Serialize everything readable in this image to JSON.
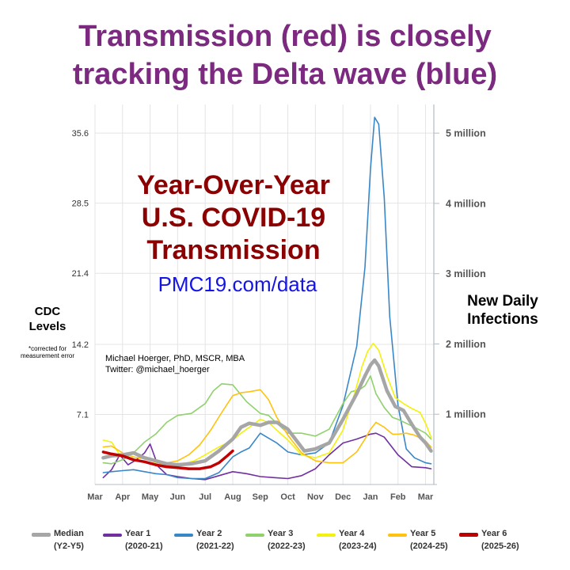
{
  "headline": {
    "line1": "Transmission (red) is closely",
    "line2": "tracking the Delta wave (blue)"
  },
  "inset": {
    "title_line1": "Year-Over-Year",
    "title_line2": "U.S. COVID-19",
    "title_line3": "Transmission",
    "url": "PMC19.com/data"
  },
  "credit": {
    "line1": "Michael Hoerger, PhD, MSCR, MBA",
    "line2": "Twitter: @michael_hoerger"
  },
  "axis_labels": {
    "left_line1": "CDC",
    "left_line2": "Levels",
    "left_note": "*corrected for measurement error",
    "right_line1": "New Daily",
    "right_line2": "Infections"
  },
  "chart_data": {
    "type": "line",
    "x_tick_labels": [
      "Mar",
      "Apr",
      "May",
      "Jun",
      "Jul",
      "Aug",
      "Sep",
      "Oct",
      "Nov",
      "Dec",
      "Jan",
      "Feb",
      "Mar"
    ],
    "x_range": [
      0,
      12.3
    ],
    "y_left_ticks": [
      7.1,
      14.2,
      21.4,
      28.5,
      35.6
    ],
    "y_left_tick_labels": [
      "7.1",
      "14.2",
      "21.4",
      "28.5",
      "35.6"
    ],
    "y_left_range": [
      0,
      38.5
    ],
    "y_right_ticks": [
      1,
      2,
      3,
      4,
      5
    ],
    "y_right_tick_labels": [
      "1 million",
      "2 million",
      "3 million",
      "4 million",
      "5 million"
    ],
    "ylabel_left": "CDC Levels",
    "ylabel_right": "New Daily Infections",
    "series": [
      {
        "name": "Year 1",
        "period": "(2020-21)",
        "color": "#7030a0",
        "width": 1.6,
        "x": [
          0.3,
          0.6,
          0.9,
          1.2,
          1.5,
          1.8,
          2.0,
          2.3,
          2.6,
          3.0,
          3.5,
          4.0,
          4.5,
          5.0,
          5.5,
          6.0,
          6.5,
          7.0,
          7.5,
          8.0,
          8.5,
          9.0,
          9.5,
          10.0,
          10.2,
          10.5,
          11.0,
          11.5,
          12.0,
          12.2
        ],
        "y": [
          0.7,
          1.5,
          3.0,
          2.0,
          2.5,
          3.2,
          4.1,
          1.8,
          1.0,
          0.8,
          0.6,
          0.5,
          0.9,
          1.3,
          1.1,
          0.8,
          0.7,
          0.6,
          0.9,
          1.6,
          3.0,
          4.2,
          4.6,
          5.1,
          5.2,
          4.8,
          3.0,
          1.8,
          1.7,
          1.6
        ]
      },
      {
        "name": "Year 2",
        "period": "(2021-22)",
        "color": "#3a87c8",
        "width": 1.6,
        "x": [
          0.3,
          0.6,
          1.0,
          1.4,
          1.8,
          2.2,
          2.6,
          3.0,
          3.5,
          4.0,
          4.5,
          5.0,
          5.3,
          5.6,
          6.0,
          6.3,
          6.6,
          7.0,
          7.5,
          8.0,
          8.5,
          9.0,
          9.5,
          9.8,
          10.0,
          10.15,
          10.3,
          10.5,
          10.7,
          11.0,
          11.3,
          11.6,
          12.0,
          12.2
        ],
        "y": [
          1.2,
          1.3,
          1.4,
          1.5,
          1.3,
          1.1,
          1.0,
          0.7,
          0.6,
          0.6,
          1.2,
          2.8,
          3.3,
          3.7,
          5.2,
          4.7,
          4.2,
          3.3,
          3.0,
          3.2,
          4.2,
          8.0,
          14.0,
          22.0,
          32.0,
          37.2,
          36.5,
          29.0,
          17.0,
          8.0,
          3.6,
          2.7,
          2.2,
          2.1
        ]
      },
      {
        "name": "Year 3",
        "period": "(2022-23)",
        "color": "#8fd16c",
        "width": 1.6,
        "x": [
          0.3,
          0.6,
          1.0,
          1.4,
          1.8,
          2.2,
          2.6,
          3.0,
          3.5,
          4.0,
          4.3,
          4.6,
          5.0,
          5.5,
          6.0,
          6.3,
          6.6,
          7.0,
          7.5,
          8.0,
          8.5,
          9.0,
          9.3,
          9.6,
          9.8,
          10.0,
          10.2,
          10.5,
          10.8,
          11.0,
          11.3,
          11.6,
          12.0,
          12.2
        ],
        "y": [
          2.2,
          2.1,
          2.5,
          3.2,
          4.3,
          5.1,
          6.3,
          7.0,
          7.2,
          8.2,
          9.5,
          10.2,
          10.1,
          8.4,
          7.2,
          7.0,
          6.2,
          5.2,
          5.2,
          4.9,
          5.6,
          8.2,
          9.4,
          9.6,
          10.0,
          11.0,
          9.2,
          7.8,
          6.8,
          6.6,
          6.2,
          5.8,
          5.2,
          4.6
        ]
      },
      {
        "name": "Year 4",
        "period": "(2023-24)",
        "color": "#f2f20e",
        "width": 1.6,
        "x": [
          0.3,
          0.6,
          0.9,
          1.2,
          1.6,
          2.0,
          2.4,
          2.8,
          3.2,
          3.6,
          4.0,
          4.5,
          5.0,
          5.3,
          5.6,
          6.0,
          6.3,
          6.6,
          7.0,
          7.5,
          8.0,
          8.5,
          9.0,
          9.4,
          9.7,
          9.9,
          10.1,
          10.3,
          10.6,
          10.9,
          11.2,
          11.5,
          11.8,
          12.0,
          12.2
        ],
        "y": [
          4.5,
          4.3,
          3.0,
          2.8,
          2.4,
          2.2,
          2.1,
          2.0,
          2.1,
          2.4,
          3.0,
          3.8,
          4.5,
          5.2,
          5.8,
          6.6,
          6.3,
          5.5,
          4.5,
          3.0,
          2.7,
          3.2,
          5.5,
          9.0,
          12.0,
          13.5,
          14.3,
          13.6,
          11.0,
          8.8,
          8.2,
          7.7,
          7.3,
          6.2,
          4.8
        ]
      },
      {
        "name": "Year 5",
        "period": "(2024-25)",
        "color": "#ffc20e",
        "width": 1.6,
        "x": [
          0.3,
          0.6,
          1.0,
          1.4,
          1.8,
          2.2,
          2.6,
          3.0,
          3.4,
          3.8,
          4.2,
          4.6,
          5.0,
          5.3,
          5.6,
          6.0,
          6.3,
          6.6,
          7.0,
          7.5,
          8.0,
          8.5,
          9.0,
          9.5,
          9.8,
          10.0,
          10.2,
          10.5,
          10.8,
          11.0,
          11.3,
          11.6,
          12.0,
          12.2
        ],
        "y": [
          3.8,
          3.9,
          3.2,
          2.8,
          2.6,
          2.3,
          2.2,
          2.4,
          3.0,
          4.0,
          5.5,
          7.3,
          9.0,
          9.3,
          9.4,
          9.6,
          8.6,
          6.8,
          5.0,
          3.2,
          2.4,
          2.2,
          2.2,
          3.3,
          4.6,
          5.6,
          6.3,
          5.8,
          5.1,
          5.1,
          5.2,
          5.0,
          4.4,
          3.8
        ]
      },
      {
        "name": "Median",
        "period": "(Y2-Y5)",
        "color": "#a6a6a6",
        "width": 4.5,
        "x": [
          0.3,
          0.6,
          1.0,
          1.4,
          1.8,
          2.2,
          2.6,
          3.0,
          3.5,
          4.0,
          4.5,
          5.0,
          5.3,
          5.6,
          6.0,
          6.3,
          6.6,
          7.0,
          7.3,
          7.6,
          8.0,
          8.5,
          9.0,
          9.5,
          9.8,
          10.0,
          10.15,
          10.3,
          10.6,
          10.9,
          11.2,
          11.5,
          11.8,
          12.0,
          12.2
        ],
        "y": [
          2.7,
          2.9,
          3.0,
          3.2,
          2.7,
          2.4,
          2.1,
          2.0,
          2.1,
          2.4,
          3.4,
          4.6,
          5.8,
          6.2,
          6.0,
          6.3,
          6.3,
          5.6,
          4.5,
          3.4,
          3.6,
          4.2,
          6.6,
          9.2,
          11.0,
          12.1,
          12.6,
          12.0,
          9.5,
          7.9,
          7.5,
          6.1,
          4.8,
          4.2,
          3.4
        ]
      },
      {
        "name": "Year 6",
        "period": "(2025-26)",
        "color": "#c00000",
        "width": 3.5,
        "x": [
          0.3,
          0.6,
          1.0,
          1.4,
          1.8,
          2.2,
          2.6,
          3.0,
          3.4,
          3.8,
          4.2,
          4.5,
          4.8,
          5.0
        ],
        "y": [
          3.3,
          3.1,
          2.9,
          2.5,
          2.3,
          2.0,
          1.8,
          1.7,
          1.6,
          1.6,
          1.8,
          2.2,
          2.9,
          3.4
        ]
      }
    ],
    "legend_order": [
      "Median",
      "Year 1",
      "Year 2",
      "Year 3",
      "Year 4",
      "Year 5",
      "Year 6"
    ]
  }
}
